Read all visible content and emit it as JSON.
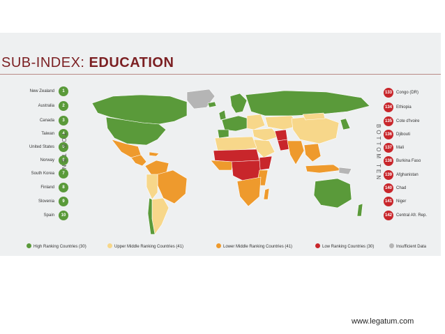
{
  "title": {
    "prefix": "SUB-INDEX: ",
    "main": "EDUCATION"
  },
  "top_label": "TOP TEN",
  "bottom_label": "BOTTOM TEN",
  "top_ten": [
    {
      "name": "New Zealand",
      "rank": "1"
    },
    {
      "name": "Australia",
      "rank": "2"
    },
    {
      "name": "Canada",
      "rank": "3"
    },
    {
      "name": "Taiwan",
      "rank": "4"
    },
    {
      "name": "United States",
      "rank": "5"
    },
    {
      "name": "Norway",
      "rank": "6"
    },
    {
      "name": "South Korea",
      "rank": "7"
    },
    {
      "name": "Finland",
      "rank": "8"
    },
    {
      "name": "Slovenia",
      "rank": "9"
    },
    {
      "name": "Spain",
      "rank": "10"
    }
  ],
  "bottom_ten": [
    {
      "name": "Congo (DR)",
      "rank": "133"
    },
    {
      "name": "Ethiopia",
      "rank": "134"
    },
    {
      "name": "Cote d'Ivoire",
      "rank": "135"
    },
    {
      "name": "Djibouti",
      "rank": "136"
    },
    {
      "name": "Mali",
      "rank": "137"
    },
    {
      "name": "Burkina Faso",
      "rank": "138"
    },
    {
      "name": "Afghanistan",
      "rank": "139"
    },
    {
      "name": "Chad",
      "rank": "140"
    },
    {
      "name": "Niger",
      "rank": "141"
    },
    {
      "name": "Central Afr. Rep.",
      "rank": "142"
    }
  ],
  "legend": [
    {
      "label": "High Ranking Countries (30)",
      "color": "#5a9a3a"
    },
    {
      "label": "Upper Middle Ranking Countries (41)",
      "color": "#f7d78a"
    },
    {
      "label": "Lower Middle Ranking Countries (41)",
      "color": "#ee9a2d"
    },
    {
      "label": "Low Ranking Countries (30)",
      "color": "#c8262b"
    },
    {
      "label": "Insufficient Data",
      "color": "#b5b5b5"
    }
  ],
  "colors": {
    "high": "#5a9a3a",
    "upper_middle": "#f7d78a",
    "lower_middle": "#ee9a2d",
    "low": "#c8262b",
    "insufficient": "#b5b5b5",
    "title": "#7b1f22"
  },
  "footer": "www.legatum.com"
}
